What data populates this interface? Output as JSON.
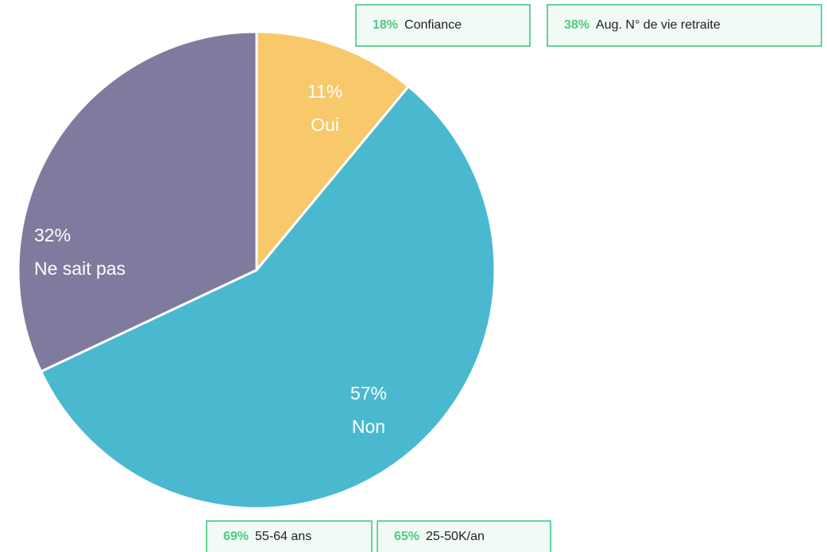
{
  "chart_data": {
    "type": "pie",
    "categories": [
      "Oui",
      "Non",
      "Ne sait pas"
    ],
    "values": [
      11,
      57,
      32
    ],
    "value_labels": [
      "11%",
      "57%",
      "32%"
    ],
    "colors": [
      "#F7C96A",
      "#4AB9CF",
      "#7F7B9E"
    ],
    "annotations": [
      {
        "percent": "18%",
        "text": "Confiance"
      },
      {
        "percent": "38%",
        "text": "Aug. N° de vie retraite"
      },
      {
        "percent": "69%",
        "text": "55-64 ans"
      },
      {
        "percent": "65%",
        "text": "25-50K/an"
      }
    ]
  }
}
